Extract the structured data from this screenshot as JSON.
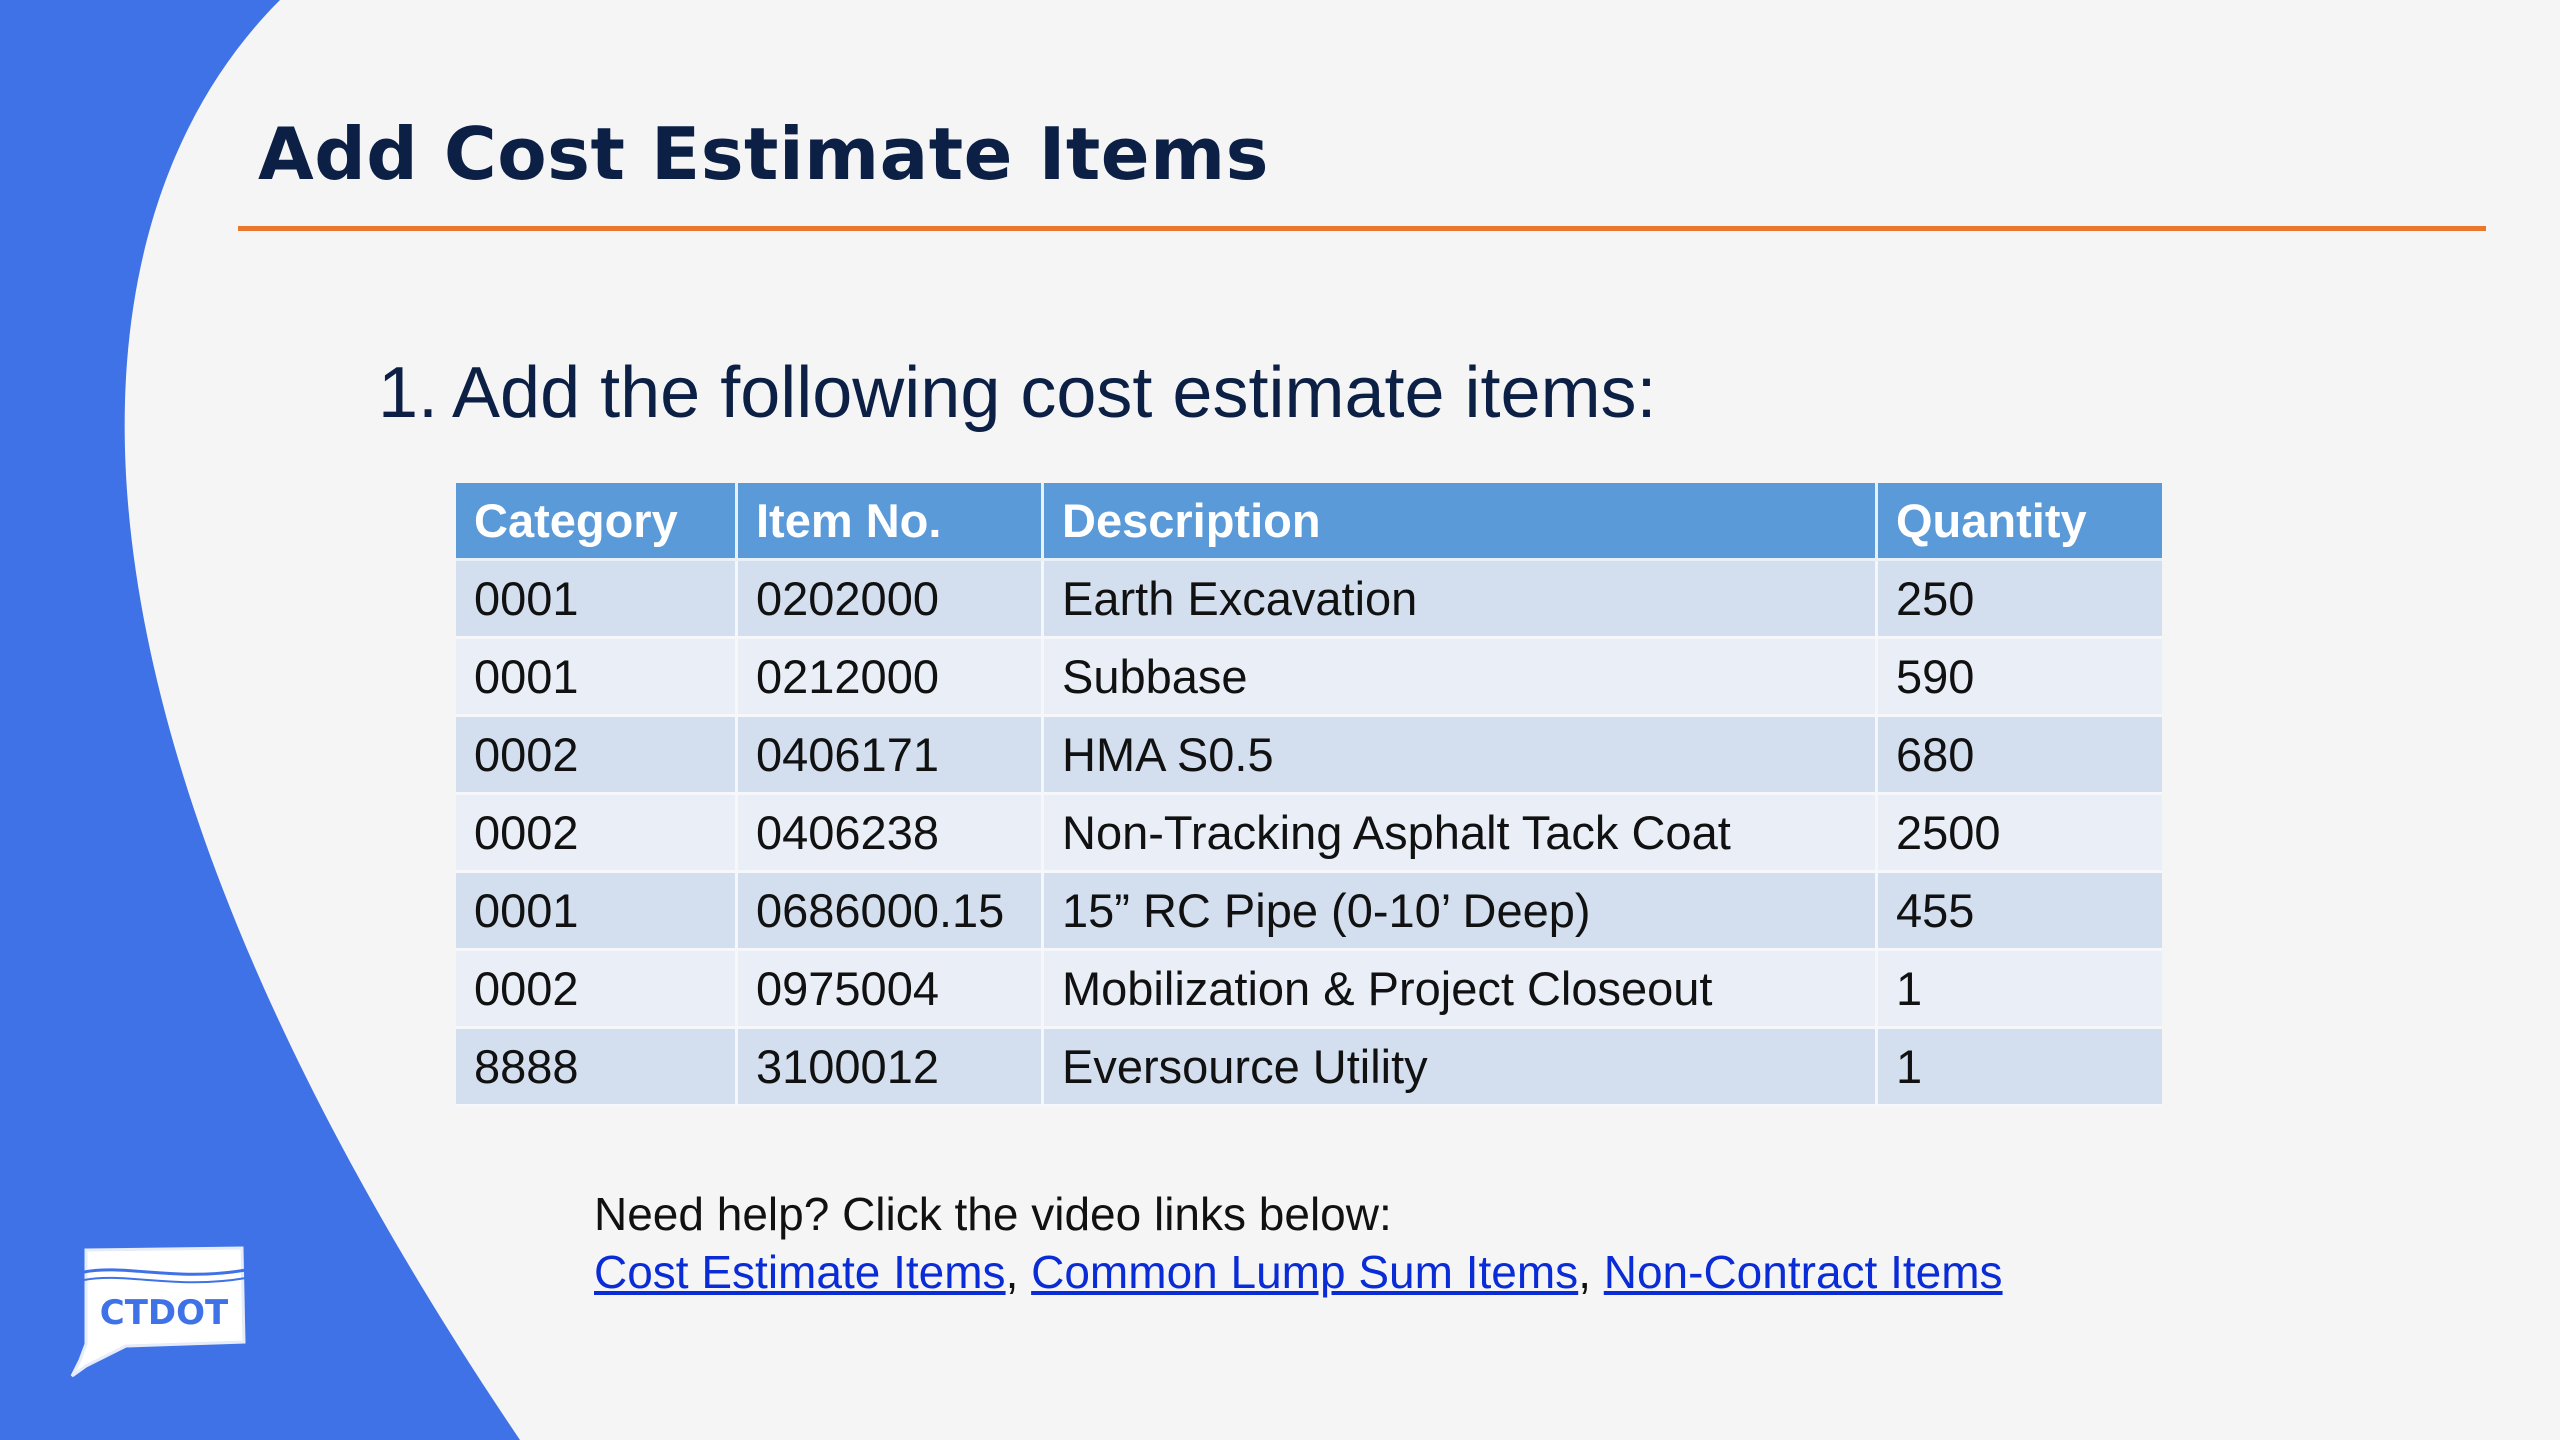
{
  "colors": {
    "background": "#f5f5f5",
    "side_panel": "#3f72e6",
    "title": "#0c1f45",
    "title_rule": "#e9782e",
    "table_header": "#5b9ad8",
    "table_row_odd": "#d3dfef",
    "table_row_even": "#e9eef7",
    "link": "#0a2cd6"
  },
  "slide": {
    "title": "Add Cost Estimate Items",
    "instruction_number": "1.",
    "instruction_text": "Add the following cost estimate items:"
  },
  "table": {
    "headers": [
      "Category",
      "Item No.",
      "Description",
      "Quantity"
    ],
    "rows": [
      [
        "0001",
        "0202000",
        "Earth Excavation",
        "250"
      ],
      [
        "0001",
        "0212000",
        "Subbase",
        "590"
      ],
      [
        "0002",
        "0406171",
        "HMA S0.5",
        "680"
      ],
      [
        "0002",
        "0406238",
        "Non-Tracking Asphalt Tack Coat",
        "2500"
      ],
      [
        "0001",
        "0686000.15",
        "15” RC Pipe (0-10’ Deep)",
        "455"
      ],
      [
        "0002",
        "0975004",
        "Mobilization & Project Closeout",
        "1"
      ],
      [
        "8888",
        "3100012",
        "Eversource Utility",
        "1"
      ]
    ]
  },
  "help": {
    "prompt": "Need help? Click the video links below:",
    "links": [
      "Cost Estimate Items",
      "Common Lump Sum Items",
      "Non-Contract Items"
    ],
    "separator": ", "
  },
  "logo": {
    "text": "CTDOT",
    "icon": "ctdot-state-outline-icon"
  }
}
